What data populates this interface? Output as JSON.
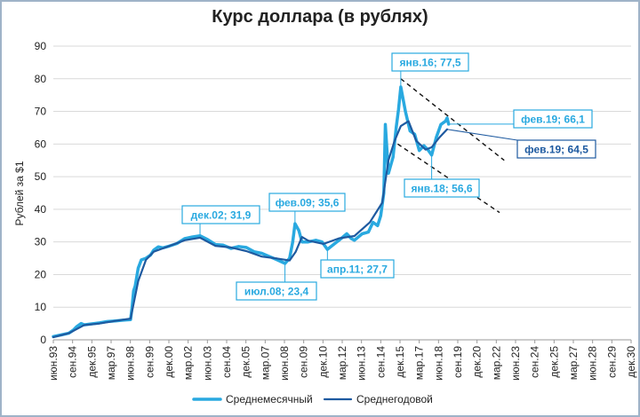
{
  "chart_data": {
    "type": "line",
    "title": "Курс доллара (в рублях)",
    "xlabel": "",
    "ylabel": "Рублей за $1",
    "ylim": [
      0,
      90
    ],
    "yticks": [
      0,
      10,
      20,
      30,
      40,
      50,
      60,
      70,
      80,
      90
    ],
    "x_tick_labels": [
      "июн.93",
      "сен.94",
      "дек.95",
      "мар.97",
      "июн.98",
      "сен.99",
      "дек.00",
      "мар.02",
      "июн.03",
      "сен.04",
      "дек.05",
      "мар.07",
      "июн.08",
      "сен.09",
      "дек.10",
      "мар.12",
      "июн.13",
      "сен.14",
      "дек.15",
      "мар.17",
      "июн.18",
      "сен.19",
      "дек.20",
      "мар.22",
      "июн.23",
      "сен.24",
      "дек.25",
      "мар.27",
      "июн.28",
      "сен.29",
      "дек.30"
    ],
    "legend_position": "bottom",
    "series": [
      {
        "name": "Среднемесячный",
        "color": "#29a9e0",
        "points": [
          [
            1993.5,
            1.0
          ],
          [
            1994.0,
            1.5
          ],
          [
            1994.5,
            2.0
          ],
          [
            1994.8,
            3.0
          ],
          [
            1995.0,
            4.0
          ],
          [
            1995.3,
            5.0
          ],
          [
            1995.5,
            4.6
          ],
          [
            1996.0,
            4.9
          ],
          [
            1996.5,
            5.2
          ],
          [
            1997.0,
            5.6
          ],
          [
            1997.5,
            5.8
          ],
          [
            1998.0,
            6.0
          ],
          [
            1998.5,
            6.2
          ],
          [
            1998.6,
            10.0
          ],
          [
            1998.7,
            15.0
          ],
          [
            1998.8,
            16.5
          ],
          [
            1999.0,
            22.0
          ],
          [
            1999.2,
            24.5
          ],
          [
            1999.5,
            25.0
          ],
          [
            1999.8,
            26.0
          ],
          [
            2000.0,
            27.5
          ],
          [
            2000.3,
            28.5
          ],
          [
            2000.6,
            28.2
          ],
          [
            2001.0,
            28.7
          ],
          [
            2001.5,
            29.5
          ],
          [
            2002.0,
            31.0
          ],
          [
            2002.5,
            31.5
          ],
          [
            2003.0,
            31.9
          ],
          [
            2003.5,
            30.7
          ],
          [
            2004.0,
            29.2
          ],
          [
            2004.5,
            29.0
          ],
          [
            2005.0,
            28.0
          ],
          [
            2005.5,
            28.6
          ],
          [
            2006.0,
            28.3
          ],
          [
            2006.5,
            27.0
          ],
          [
            2007.0,
            26.5
          ],
          [
            2007.5,
            25.5
          ],
          [
            2008.0,
            24.5
          ],
          [
            2008.5,
            23.4
          ],
          [
            2008.8,
            25.0
          ],
          [
            2009.0,
            30.0
          ],
          [
            2009.15,
            35.6
          ],
          [
            2009.4,
            33.5
          ],
          [
            2009.6,
            30.0
          ],
          [
            2010.0,
            30.0
          ],
          [
            2010.5,
            30.5
          ],
          [
            2010.9,
            30.0
          ],
          [
            2011.25,
            27.7
          ],
          [
            2011.6,
            29.0
          ],
          [
            2012.0,
            30.5
          ],
          [
            2012.5,
            32.5
          ],
          [
            2012.8,
            31.0
          ],
          [
            2013.0,
            30.5
          ],
          [
            2013.5,
            32.5
          ],
          [
            2013.9,
            33.0
          ],
          [
            2014.2,
            36.0
          ],
          [
            2014.5,
            35.0
          ],
          [
            2014.7,
            38.0
          ],
          [
            2014.9,
            45.0
          ],
          [
            2015.0,
            66.0
          ],
          [
            2015.2,
            51.0
          ],
          [
            2015.5,
            56.0
          ],
          [
            2015.7,
            65.0
          ],
          [
            2015.85,
            70.5
          ],
          [
            2016.0,
            77.5
          ],
          [
            2016.3,
            70.0
          ],
          [
            2016.6,
            64.0
          ],
          [
            2016.9,
            63.0
          ],
          [
            2017.2,
            58.0
          ],
          [
            2017.5,
            59.5
          ],
          [
            2017.8,
            58.0
          ],
          [
            2018.0,
            56.6
          ],
          [
            2018.3,
            62.0
          ],
          [
            2018.6,
            66.0
          ],
          [
            2018.9,
            67.0
          ],
          [
            2019.0,
            68.0
          ],
          [
            2019.1,
            66.1
          ]
        ]
      },
      {
        "name": "Среднегодовой",
        "color": "#1e5aa0",
        "points": [
          [
            1993.5,
            0.8
          ],
          [
            1994.5,
            2.0
          ],
          [
            1995.5,
            4.5
          ],
          [
            1996.5,
            5.0
          ],
          [
            1997.5,
            5.8
          ],
          [
            1998.5,
            6.5
          ],
          [
            1999.0,
            18.0
          ],
          [
            1999.5,
            24.5
          ],
          [
            2000.0,
            27.0
          ],
          [
            2001.0,
            28.7
          ],
          [
            2002.0,
            30.5
          ],
          [
            2003.0,
            31.3
          ],
          [
            2004.0,
            28.8
          ],
          [
            2005.0,
            28.3
          ],
          [
            2006.0,
            27.2
          ],
          [
            2007.0,
            25.5
          ],
          [
            2008.0,
            24.9
          ],
          [
            2008.8,
            24.3
          ],
          [
            2009.2,
            27.0
          ],
          [
            2009.6,
            31.5
          ],
          [
            2010.0,
            30.4
          ],
          [
            2011.0,
            29.4
          ],
          [
            2012.0,
            31.1
          ],
          [
            2013.0,
            31.8
          ],
          [
            2014.0,
            36.0
          ],
          [
            2014.8,
            42.0
          ],
          [
            2015.2,
            55.0
          ],
          [
            2015.6,
            61.0
          ],
          [
            2016.0,
            65.5
          ],
          [
            2016.5,
            67.0
          ],
          [
            2017.0,
            61.0
          ],
          [
            2017.6,
            58.3
          ],
          [
            2018.0,
            59.0
          ],
          [
            2018.5,
            62.0
          ],
          [
            2019.0,
            64.5
          ]
        ]
      }
    ],
    "trendlines": [
      {
        "from": [
          2016.0,
          80.0
        ],
        "to": [
          2022.7,
          55.0
        ],
        "style": "dashed"
      },
      {
        "from": [
          2015.8,
          60.0
        ],
        "to": [
          2022.4,
          39.0
        ],
        "style": "dashed"
      }
    ],
    "annotations": [
      {
        "text": "янв.16; 77,5",
        "color": "#29a9e0"
      },
      {
        "text": "дек.02; 31,9",
        "color": "#29a9e0"
      },
      {
        "text": "фев.09; 35,6",
        "color": "#29a9e0"
      },
      {
        "text": "июл.08; 23,4",
        "color": "#29a9e0"
      },
      {
        "text": "апр.11; 27,7",
        "color": "#29a9e0"
      },
      {
        "text": "фев.19; 66,1",
        "color": "#29a9e0"
      },
      {
        "text": "фев.19; 64,5",
        "color": "#1e5aa0"
      },
      {
        "text": "янв.18; 56,6",
        "color": "#29a9e0"
      }
    ]
  }
}
